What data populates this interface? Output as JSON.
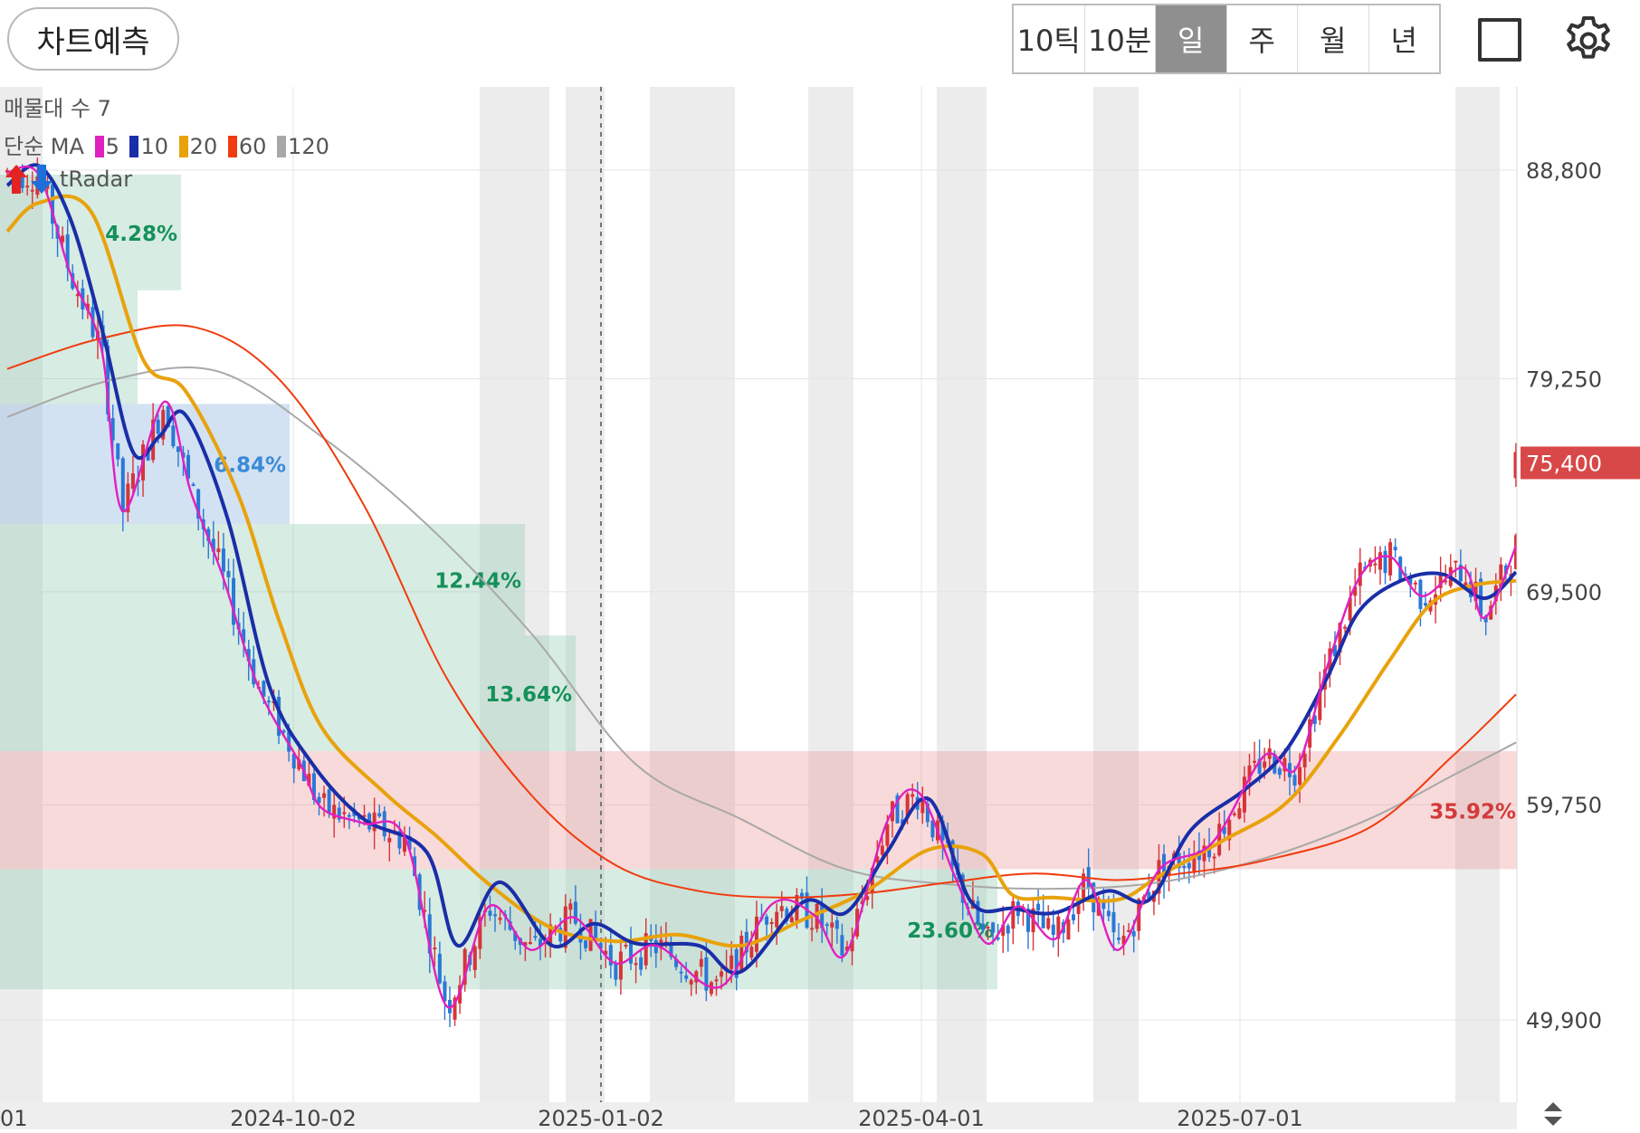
{
  "toolbar": {
    "predict_label": "차트예측",
    "periods": [
      "10틱",
      "10분",
      "일",
      "주",
      "월",
      "년"
    ],
    "active_period": "일"
  },
  "legend": {
    "volume_profile": "매물대 수 7",
    "ma_label": "단순 MA",
    "ma_items": [
      {
        "period": "5",
        "color": "#e020c0"
      },
      {
        "period": "10",
        "color": "#1a2ea8"
      },
      {
        "period": "20",
        "color": "#e8a20c"
      },
      {
        "period": "60",
        "color": "#f03c10"
      },
      {
        "period": "120",
        "color": "#a8a8a8"
      }
    ],
    "radar_label": "tRadar"
  },
  "chart_data": {
    "type": "candlestick",
    "y_ticks": [
      "88,800",
      "79,250",
      "69,500",
      "59,750",
      "49,900"
    ],
    "y_tick_values": [
      88800,
      79250,
      69500,
      59750,
      49900
    ],
    "ylim": [
      46200,
      92300
    ],
    "current_price": "75,400",
    "current_price_value": 75400,
    "x_ticks": [
      "01",
      "2024-10-02",
      "2025-01-02",
      "2025-04-01",
      "2025-07-01"
    ],
    "x_range": [
      "2024-07-01",
      "2025-09-10"
    ],
    "x_tick_dates": [
      "2024-07-01",
      "2024-10-02",
      "2025-01-02",
      "2025-04-01",
      "2025-07-01"
    ],
    "divider_date": "2025-01-02",
    "volume_profile": [
      {
        "label": "4.28%",
        "from": 83300,
        "to": 88600,
        "share": 4.28,
        "color": "green"
      },
      {
        "label": "",
        "from": 78100,
        "to": 83300,
        "share": 3.1,
        "color": "green"
      },
      {
        "label": "6.84%",
        "from": 72600,
        "to": 78100,
        "share": 6.84,
        "color": "blue"
      },
      {
        "label": "12.44%",
        "from": 67500,
        "to": 72600,
        "share": 12.44,
        "color": "green"
      },
      {
        "label": "13.64%",
        "from": 62200,
        "to": 67500,
        "share": 13.64,
        "color": "green"
      },
      {
        "label": "35.92%",
        "from": 56800,
        "to": 62200,
        "share": 35.92,
        "color": "red"
      },
      {
        "label": "23.60%",
        "from": 51300,
        "to": 56800,
        "share": 23.6,
        "color": "green"
      }
    ],
    "ma_keypoints": {
      "ma60": [
        [
          0,
          79700
        ],
        [
          90,
          81100
        ],
        [
          180,
          81600
        ],
        [
          260,
          79200
        ],
        [
          340,
          73500
        ],
        [
          420,
          65500
        ],
        [
          500,
          60200
        ],
        [
          580,
          57000
        ],
        [
          660,
          55800
        ],
        [
          740,
          55500
        ],
        [
          820,
          55700
        ],
        [
          900,
          56200
        ],
        [
          980,
          56600
        ],
        [
          1060,
          56300
        ],
        [
          1120,
          56600
        ],
        [
          1200,
          57200
        ],
        [
          1300,
          58700
        ],
        [
          1380,
          62000
        ],
        [
          1440,
          64800
        ]
      ],
      "ma120": [
        [
          0,
          77500
        ],
        [
          100,
          79200
        ],
        [
          200,
          79600
        ],
        [
          300,
          76600
        ],
        [
          400,
          72600
        ],
        [
          500,
          67600
        ],
        [
          600,
          61600
        ],
        [
          700,
          59100
        ],
        [
          800,
          56800
        ],
        [
          900,
          56100
        ],
        [
          1000,
          55900
        ],
        [
          1100,
          56200
        ],
        [
          1200,
          57300
        ],
        [
          1300,
          59100
        ],
        [
          1380,
          61100
        ],
        [
          1440,
          62600
        ]
      ],
      "ma20": [
        [
          0,
          86000
        ],
        [
          30,
          87300
        ],
        [
          80,
          86900
        ],
        [
          130,
          80100
        ],
        [
          170,
          78700
        ],
        [
          220,
          74000
        ],
        [
          260,
          68100
        ],
        [
          300,
          63300
        ],
        [
          360,
          60300
        ],
        [
          410,
          58300
        ],
        [
          460,
          56100
        ],
        [
          520,
          54100
        ],
        [
          580,
          53500
        ],
        [
          640,
          53800
        ],
        [
          700,
          53300
        ],
        [
          760,
          54500
        ],
        [
          820,
          55800
        ],
        [
          880,
          57700
        ],
        [
          930,
          57500
        ],
        [
          960,
          55600
        ],
        [
          1000,
          55500
        ],
        [
          1060,
          55400
        ],
        [
          1100,
          56500
        ],
        [
          1160,
          58100
        ],
        [
          1220,
          59800
        ],
        [
          1270,
          62800
        ],
        [
          1320,
          66400
        ],
        [
          1360,
          69000
        ],
        [
          1400,
          69800
        ],
        [
          1440,
          70000
        ]
      ],
      "ma10": [
        [
          0,
          88100
        ],
        [
          30,
          89000
        ],
        [
          60,
          86600
        ],
        [
          90,
          81600
        ],
        [
          120,
          75900
        ],
        [
          145,
          76600
        ],
        [
          170,
          77600
        ],
        [
          210,
          72900
        ],
        [
          250,
          65200
        ],
        [
          290,
          61700
        ],
        [
          340,
          59100
        ],
        [
          400,
          57600
        ],
        [
          430,
          53300
        ],
        [
          470,
          56200
        ],
        [
          520,
          53300
        ],
        [
          560,
          54300
        ],
        [
          600,
          53400
        ],
        [
          660,
          53300
        ],
        [
          700,
          52100
        ],
        [
          760,
          55300
        ],
        [
          800,
          54800
        ],
        [
          840,
          57600
        ],
        [
          880,
          60000
        ],
        [
          920,
          55300
        ],
        [
          960,
          55000
        ],
        [
          1000,
          54800
        ],
        [
          1050,
          55800
        ],
        [
          1090,
          55400
        ],
        [
          1130,
          58600
        ],
        [
          1180,
          60400
        ],
        [
          1220,
          62200
        ],
        [
          1260,
          65600
        ],
        [
          1290,
          68600
        ],
        [
          1330,
          70000
        ],
        [
          1370,
          70300
        ],
        [
          1410,
          69200
        ],
        [
          1440,
          70400
        ]
      ],
      "ma5": [
        [
          0,
          88700
        ],
        [
          30,
          88600
        ],
        [
          60,
          84100
        ],
        [
          90,
          80600
        ],
        [
          110,
          73200
        ],
        [
          150,
          78200
        ],
        [
          175,
          74100
        ],
        [
          205,
          70300
        ],
        [
          240,
          65100
        ],
        [
          280,
          61600
        ],
        [
          300,
          59600
        ],
        [
          340,
          58900
        ],
        [
          380,
          58200
        ],
        [
          420,
          50500
        ],
        [
          460,
          55100
        ],
        [
          500,
          53100
        ],
        [
          540,
          54600
        ],
        [
          580,
          52500
        ],
        [
          620,
          53300
        ],
        [
          680,
          51400
        ],
        [
          730,
          55200
        ],
        [
          770,
          54700
        ],
        [
          800,
          52900
        ],
        [
          840,
          59000
        ],
        [
          870,
          60300
        ],
        [
          905,
          56400
        ],
        [
          935,
          53400
        ],
        [
          965,
          55100
        ],
        [
          1000,
          53600
        ],
        [
          1030,
          56300
        ],
        [
          1060,
          53100
        ],
        [
          1100,
          56800
        ],
        [
          1150,
          58000
        ],
        [
          1200,
          62000
        ],
        [
          1230,
          61400
        ],
        [
          1260,
          66100
        ],
        [
          1290,
          70100
        ],
        [
          1320,
          71100
        ],
        [
          1350,
          69300
        ],
        [
          1390,
          70600
        ],
        [
          1410,
          68300
        ],
        [
          1440,
          71600
        ]
      ]
    }
  }
}
